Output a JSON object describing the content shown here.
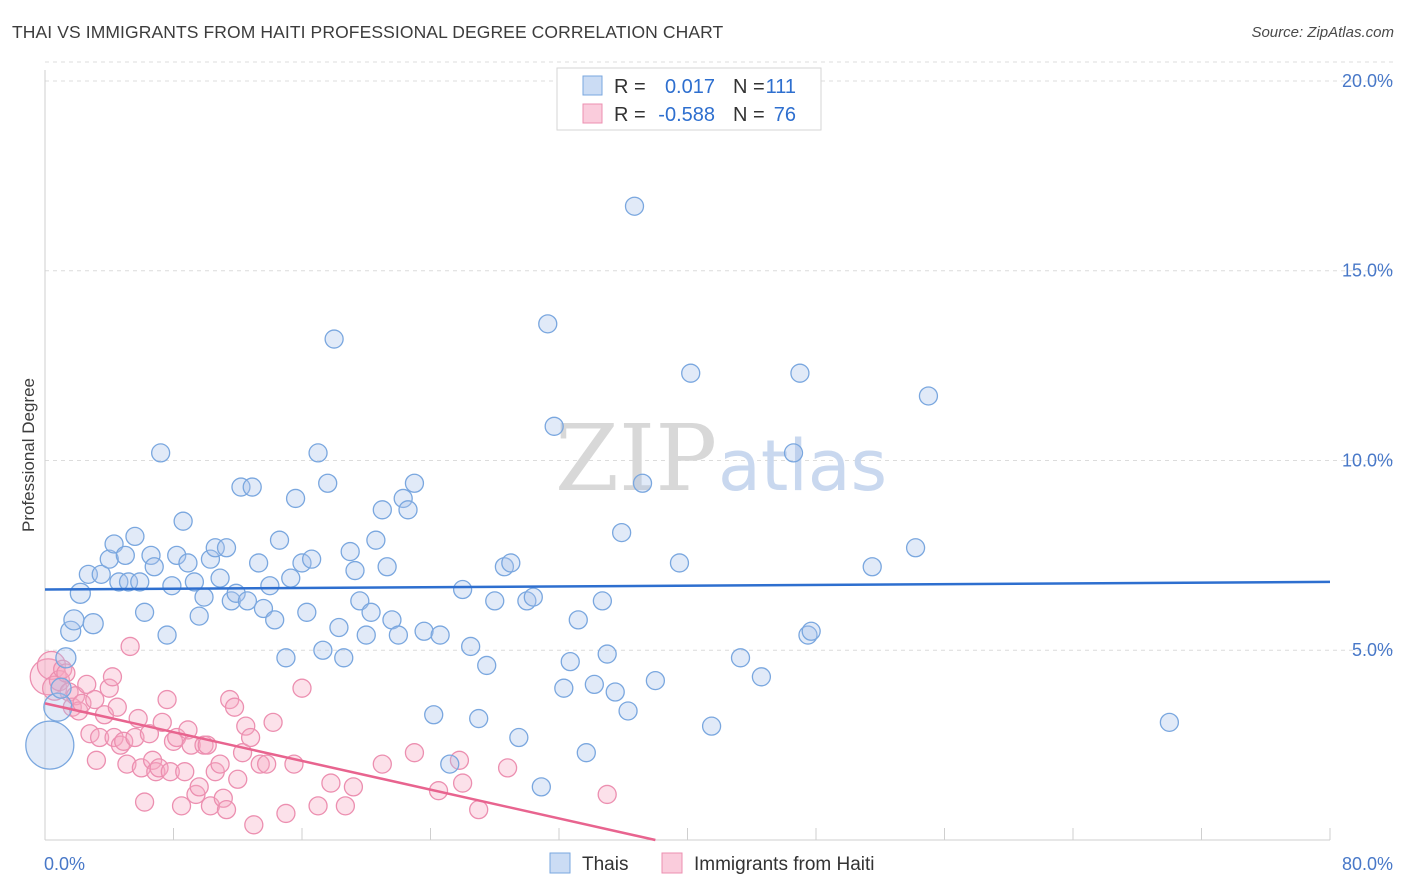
{
  "title": "THAI VS IMMIGRANTS FROM HAITI PROFESSIONAL DEGREE CORRELATION CHART",
  "source": "Source: ZipAtlas.com",
  "watermark": {
    "zip": "ZIP",
    "atlas": "atlas"
  },
  "colors": {
    "thais_fill": "rgba(168,196,236,0.35)",
    "thais_stroke": "#7aa7df",
    "thais_line": "#2e6fcf",
    "haiti_fill": "rgba(246,170,196,0.35)",
    "haiti_stroke": "#ec8fb0",
    "haiti_line": "#e8648f",
    "grid": "#dcdcdc",
    "tick_label": "#4878c8"
  },
  "legend": {
    "rows": [
      {
        "r_label": "R =",
        "r_value": "0.017",
        "n_label": "N =",
        "n_value": "111",
        "series": "thais"
      },
      {
        "r_label": "R =",
        "r_value": "-0.588",
        "n_label": "N =",
        "n_value": "76",
        "series": "haiti"
      }
    ]
  },
  "bottom_legend": [
    "Thais",
    "Immigrants from Haiti"
  ],
  "chart_data": {
    "type": "scatter",
    "title": "THAI VS IMMIGRANTS FROM HAITI PROFESSIONAL DEGREE CORRELATION CHART",
    "xlabel": "",
    "ylabel": "Professional Degree",
    "xlim": [
      0,
      80
    ],
    "ylim": [
      0,
      20.5
    ],
    "x_tick_labels": [
      "0.0%",
      "80.0%"
    ],
    "y_ticks": [
      5,
      10,
      15,
      20
    ],
    "y_tick_labels": [
      "5.0%",
      "10.0%",
      "15.0%",
      "20.0%"
    ],
    "grid": "horizontal dashed",
    "legend_placement": "top-center",
    "series": [
      {
        "name": "Thais",
        "trend": {
          "x": [
            0,
            80
          ],
          "y": [
            6.6,
            6.8
          ]
        },
        "points": [
          [
            0.3,
            2.5,
            24
          ],
          [
            0.8,
            3.5,
            14
          ],
          [
            1.0,
            4.0,
            10
          ],
          [
            1.3,
            4.8,
            10
          ],
          [
            1.6,
            5.5,
            10
          ],
          [
            1.8,
            5.8,
            10
          ],
          [
            2.2,
            6.5,
            10
          ],
          [
            2.7,
            7.0,
            9
          ],
          [
            3.0,
            5.7,
            10
          ],
          [
            3.5,
            7.0,
            9
          ],
          [
            4.0,
            7.4,
            9
          ],
          [
            4.3,
            7.8,
            9
          ],
          [
            4.6,
            6.8,
            9
          ],
          [
            5.0,
            7.5,
            9
          ],
          [
            5.2,
            6.8,
            9
          ],
          [
            5.6,
            8.0,
            9
          ],
          [
            5.9,
            6.8,
            9
          ],
          [
            6.2,
            6.0,
            9
          ],
          [
            6.6,
            7.5,
            9
          ],
          [
            6.8,
            7.2,
            9
          ],
          [
            7.2,
            10.2,
            9
          ],
          [
            7.6,
            5.4,
            9
          ],
          [
            7.9,
            6.7,
            9
          ],
          [
            8.2,
            7.5,
            9
          ],
          [
            8.6,
            8.4,
            9
          ],
          [
            8.9,
            7.3,
            9
          ],
          [
            9.3,
            6.8,
            9
          ],
          [
            9.6,
            5.9,
            9
          ],
          [
            9.9,
            6.4,
            9
          ],
          [
            10.3,
            7.4,
            9
          ],
          [
            10.6,
            7.7,
            9
          ],
          [
            10.9,
            6.9,
            9
          ],
          [
            11.3,
            7.7,
            9
          ],
          [
            11.6,
            6.3,
            9
          ],
          [
            11.9,
            6.5,
            9
          ],
          [
            12.2,
            9.3,
            9
          ],
          [
            12.6,
            6.3,
            9
          ],
          [
            12.9,
            9.3,
            9
          ],
          [
            13.3,
            7.3,
            9
          ],
          [
            13.6,
            6.1,
            9
          ],
          [
            14.0,
            6.7,
            9
          ],
          [
            14.3,
            5.8,
            9
          ],
          [
            14.6,
            7.9,
            9
          ],
          [
            15.0,
            4.8,
            9
          ],
          [
            15.3,
            6.9,
            9
          ],
          [
            15.6,
            9.0,
            9
          ],
          [
            16.0,
            7.3,
            9
          ],
          [
            16.3,
            6.0,
            9
          ],
          [
            16.6,
            7.4,
            9
          ],
          [
            17.0,
            10.2,
            9
          ],
          [
            17.3,
            5.0,
            9
          ],
          [
            17.6,
            9.4,
            9
          ],
          [
            18.0,
            13.2,
            9
          ],
          [
            18.3,
            5.6,
            9
          ],
          [
            18.6,
            4.8,
            9
          ],
          [
            19.0,
            7.6,
            9
          ],
          [
            19.3,
            7.1,
            9
          ],
          [
            19.6,
            6.3,
            9
          ],
          [
            20.0,
            5.4,
            9
          ],
          [
            20.3,
            6.0,
            9
          ],
          [
            20.6,
            7.9,
            9
          ],
          [
            21.0,
            8.7,
            9
          ],
          [
            21.3,
            7.2,
            9
          ],
          [
            21.6,
            5.8,
            9
          ],
          [
            22.0,
            5.4,
            9
          ],
          [
            22.3,
            9.0,
            9
          ],
          [
            22.6,
            8.7,
            9
          ],
          [
            23.0,
            9.4,
            9
          ],
          [
            23.6,
            5.5,
            9
          ],
          [
            24.2,
            3.3,
            9
          ],
          [
            24.6,
            5.4,
            9
          ],
          [
            25.2,
            2.0,
            9
          ],
          [
            26.0,
            6.6,
            9
          ],
          [
            26.5,
            5.1,
            9
          ],
          [
            27.0,
            3.2,
            9
          ],
          [
            27.5,
            4.6,
            9
          ],
          [
            28.0,
            6.3,
            9
          ],
          [
            28.6,
            7.2,
            9
          ],
          [
            29.0,
            7.3,
            9
          ],
          [
            29.5,
            2.7,
            9
          ],
          [
            30.0,
            6.3,
            9
          ],
          [
            30.4,
            6.4,
            9
          ],
          [
            30.9,
            1.4,
            9
          ],
          [
            31.3,
            13.6,
            9
          ],
          [
            31.7,
            10.9,
            9
          ],
          [
            32.3,
            4.0,
            9
          ],
          [
            32.7,
            4.7,
            9
          ],
          [
            33.2,
            5.8,
            9
          ],
          [
            33.7,
            2.3,
            9
          ],
          [
            34.2,
            4.1,
            9
          ],
          [
            34.7,
            6.3,
            9
          ],
          [
            35.0,
            4.9,
            9
          ],
          [
            35.5,
            3.9,
            9
          ],
          [
            35.9,
            8.1,
            9
          ],
          [
            36.3,
            3.4,
            9
          ],
          [
            36.7,
            16.7,
            9
          ],
          [
            37.2,
            9.4,
            9
          ],
          [
            38.0,
            4.2,
            9
          ],
          [
            39.5,
            7.3,
            9
          ],
          [
            40.2,
            12.3,
            9
          ],
          [
            41.5,
            3.0,
            9
          ],
          [
            43.3,
            4.8,
            9
          ],
          [
            44.6,
            4.3,
            9
          ],
          [
            46.6,
            10.2,
            9
          ],
          [
            47.0,
            12.3,
            9
          ],
          [
            47.5,
            5.4,
            9
          ],
          [
            47.7,
            5.5,
            9
          ],
          [
            51.5,
            7.2,
            9
          ],
          [
            54.2,
            7.7,
            9
          ],
          [
            55.0,
            11.7,
            9
          ],
          [
            70.0,
            3.1,
            9
          ]
        ]
      },
      {
        "name": "Immigrants from Haiti",
        "trend": {
          "x": [
            0,
            38
          ],
          "y": [
            3.6,
            0
          ]
        },
        "points": [
          [
            0.2,
            4.3,
            18
          ],
          [
            0.4,
            4.6,
            14
          ],
          [
            0.6,
            4.0,
            12
          ],
          [
            0.9,
            4.2,
            10
          ],
          [
            1.1,
            4.5,
            9
          ],
          [
            1.3,
            4.4,
            9
          ],
          [
            1.5,
            3.9,
            9
          ],
          [
            1.7,
            3.5,
            9
          ],
          [
            1.9,
            3.8,
            9
          ],
          [
            2.1,
            3.4,
            9
          ],
          [
            2.3,
            3.6,
            9
          ],
          [
            2.6,
            4.1,
            9
          ],
          [
            2.8,
            2.8,
            9
          ],
          [
            3.1,
            3.7,
            9
          ],
          [
            3.2,
            2.1,
            9
          ],
          [
            3.4,
            2.7,
            9
          ],
          [
            3.7,
            3.3,
            9
          ],
          [
            4.0,
            4.0,
            9
          ],
          [
            4.2,
            4.3,
            9
          ],
          [
            4.3,
            2.7,
            9
          ],
          [
            4.5,
            3.5,
            9
          ],
          [
            4.7,
            2.5,
            9
          ],
          [
            4.9,
            2.6,
            9
          ],
          [
            5.1,
            2.0,
            9
          ],
          [
            5.3,
            5.1,
            9
          ],
          [
            5.6,
            2.7,
            9
          ],
          [
            5.8,
            3.2,
            9
          ],
          [
            6.0,
            1.9,
            9
          ],
          [
            6.2,
            1.0,
            9
          ],
          [
            6.5,
            2.8,
            9
          ],
          [
            6.7,
            2.1,
            9
          ],
          [
            6.9,
            1.8,
            9
          ],
          [
            7.1,
            1.9,
            9
          ],
          [
            7.3,
            3.1,
            9
          ],
          [
            7.6,
            3.7,
            9
          ],
          [
            7.8,
            1.8,
            9
          ],
          [
            8.0,
            2.6,
            9
          ],
          [
            8.2,
            2.7,
            9
          ],
          [
            8.5,
            0.9,
            9
          ],
          [
            8.7,
            1.8,
            9
          ],
          [
            8.9,
            2.9,
            9
          ],
          [
            9.1,
            2.5,
            9
          ],
          [
            9.4,
            1.2,
            9
          ],
          [
            9.6,
            1.4,
            9
          ],
          [
            9.9,
            2.5,
            9
          ],
          [
            10.1,
            2.5,
            9
          ],
          [
            10.3,
            0.9,
            9
          ],
          [
            10.6,
            1.8,
            9
          ],
          [
            10.9,
            2.0,
            9
          ],
          [
            11.1,
            1.1,
            9
          ],
          [
            11.3,
            0.8,
            9
          ],
          [
            11.5,
            3.7,
            9
          ],
          [
            11.8,
            3.5,
            9
          ],
          [
            12.0,
            1.6,
            9
          ],
          [
            12.3,
            2.3,
            9
          ],
          [
            12.5,
            3.0,
            9
          ],
          [
            12.8,
            2.7,
            9
          ],
          [
            13.0,
            0.4,
            9
          ],
          [
            13.4,
            2.0,
            9
          ],
          [
            13.8,
            2.0,
            9
          ],
          [
            14.2,
            3.1,
            9
          ],
          [
            15.0,
            0.7,
            9
          ],
          [
            15.5,
            2.0,
            9
          ],
          [
            16.0,
            4.0,
            9
          ],
          [
            17.0,
            0.9,
            9
          ],
          [
            17.8,
            1.5,
            9
          ],
          [
            18.7,
            0.9,
            9
          ],
          [
            19.2,
            1.4,
            9
          ],
          [
            21.0,
            2.0,
            9
          ],
          [
            23.0,
            2.3,
            9
          ],
          [
            24.5,
            1.3,
            9
          ],
          [
            25.8,
            2.1,
            9
          ],
          [
            26.0,
            1.5,
            9
          ],
          [
            27.0,
            0.8,
            9
          ],
          [
            28.8,
            1.9,
            9
          ],
          [
            35.0,
            1.2,
            9
          ]
        ]
      }
    ]
  }
}
